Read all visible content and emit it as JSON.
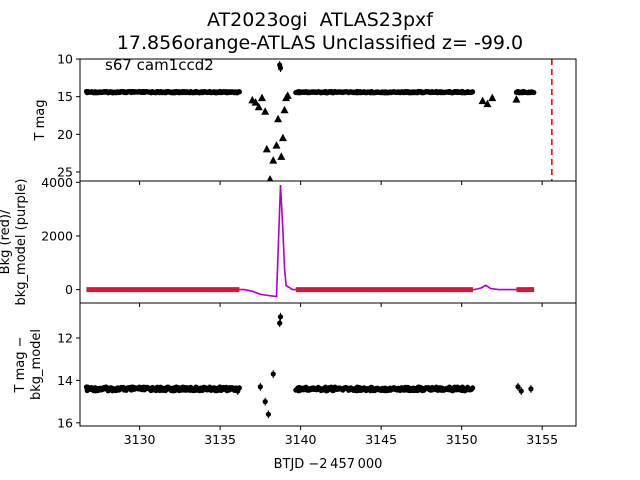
{
  "figure": {
    "title_line1": "AT2023ogi  ATLAS23pxf",
    "title_line2": "17.856orange-ATLAS Unclassified z= -99.0",
    "xlabel": "BTJD −2 457 000"
  },
  "chart_data": [
    {
      "type": "scatter",
      "panel": "top",
      "ylabel": "T mag",
      "annotation": "s67 cam1ccd2",
      "y_inverted": true,
      "ylim": [
        26.2,
        10
      ],
      "xlim": [
        3126.3,
        3157.1
      ],
      "yticks": [
        10,
        15,
        20,
        25
      ],
      "series": [
        {
          "marker": "circle",
          "color": "#000000",
          "description": "dense flat light curve",
          "x_ranges": [
            [
              3126.7,
              3136.2
            ],
            [
              3139.7,
              3150.7
            ],
            [
              3153.4,
              3154.5
            ]
          ],
          "y": 14.4
        },
        {
          "marker": "triangle",
          "color": "#000000",
          "points": [
            [
              3137.0,
              15.5
            ],
            [
              3137.2,
              15.8
            ],
            [
              3137.4,
              16.4
            ],
            [
              3137.6,
              15.2
            ],
            [
              3137.8,
              17.0
            ],
            [
              3137.9,
              22.0
            ],
            [
              3138.1,
              26.0
            ],
            [
              3138.3,
              23.5
            ],
            [
              3138.5,
              21.5
            ],
            [
              3138.6,
              18.0
            ],
            [
              3138.8,
              23.0
            ],
            [
              3138.9,
              20.5
            ],
            [
              3139.0,
              16.8
            ],
            [
              3139.1,
              15.2
            ],
            [
              3139.2,
              14.9
            ],
            [
              3151.3,
              15.6
            ],
            [
              3151.6,
              16.0
            ],
            [
              3151.9,
              15.2
            ],
            [
              3153.4,
              15.4
            ]
          ]
        },
        {
          "marker": "circle",
          "color": "#000000",
          "points": [
            [
              3138.7,
              10.8
            ],
            [
              3138.75,
              11.2
            ]
          ]
        }
      ],
      "reference_lines": [
        {
          "x": 3155.6,
          "style": "dashed",
          "color": "#ff0000"
        }
      ]
    },
    {
      "type": "line",
      "panel": "middle",
      "ylabel_line1": "Bkg (red)/",
      "ylabel_line2": "bkg_model (purple)",
      "ylim": [
        -500,
        4050
      ],
      "xlim": [
        3126.3,
        3157.1
      ],
      "yticks": [
        0,
        2000,
        4000
      ],
      "series": [
        {
          "name": "bkg_model",
          "color": "#b000c8",
          "points": [
            [
              3126.7,
              0
            ],
            [
              3136.5,
              0
            ],
            [
              3137.0,
              -60
            ],
            [
              3137.5,
              -180
            ],
            [
              3138.0,
              -220
            ],
            [
              3138.5,
              -260
            ],
            [
              3138.75,
              3900
            ],
            [
              3138.9,
              2200
            ],
            [
              3139.0,
              800
            ],
            [
              3139.1,
              150
            ],
            [
              3139.5,
              0
            ],
            [
              3150.8,
              0
            ],
            [
              3151.2,
              60
            ],
            [
              3151.5,
              160
            ],
            [
              3151.8,
              40
            ],
            [
              3152.3,
              0
            ],
            [
              3154.5,
              0
            ]
          ]
        },
        {
          "name": "bkg",
          "color": "#dc143c",
          "x_ranges": [
            [
              3126.7,
              3136.2
            ],
            [
              3139.7,
              3150.7
            ],
            [
              3153.4,
              3154.5
            ]
          ],
          "y": 0
        }
      ]
    },
    {
      "type": "scatter",
      "panel": "bottom",
      "ylabel_line1": "T mag −",
      "ylabel_line2": "bkg_model",
      "y_inverted": true,
      "ylim": [
        16.15,
        10.35
      ],
      "xlim": [
        3126.3,
        3157.1
      ],
      "yticks": [
        12,
        14,
        16
      ],
      "xticks": [
        3130,
        3135,
        3140,
        3145,
        3150,
        3155
      ],
      "series": [
        {
          "marker": "circle",
          "color": "#000000",
          "x_ranges": [
            [
              3126.7,
              3136.2
            ],
            [
              3139.7,
              3150.7
            ]
          ],
          "y": 14.4
        },
        {
          "marker": "circle",
          "color": "#000000",
          "points": [
            [
              3136.1,
              14.5
            ],
            [
              3137.5,
              14.3
            ],
            [
              3137.8,
              15.0
            ],
            [
              3138.0,
              15.6
            ],
            [
              3138.3,
              13.7
            ],
            [
              3138.7,
              11.3
            ],
            [
              3138.75,
              11.0
            ],
            [
              3153.5,
              14.3
            ],
            [
              3153.7,
              14.5
            ],
            [
              3154.3,
              14.4
            ]
          ]
        }
      ]
    }
  ]
}
